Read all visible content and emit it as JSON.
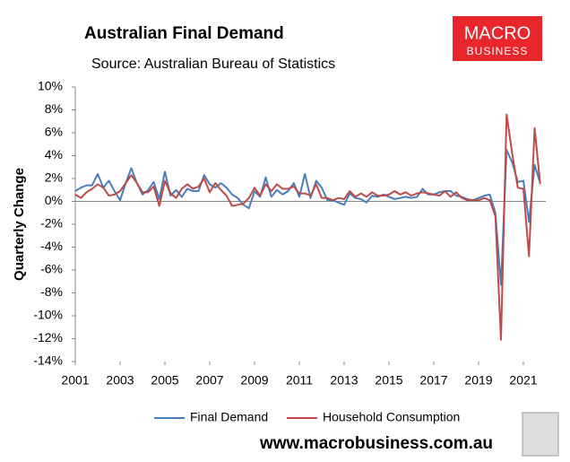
{
  "chart_data": {
    "type": "line",
    "title": "Australian Final Demand",
    "subtitle": "Source: Australian Bureau of Statistics",
    "y_label": "Quarterly Change",
    "logo": {
      "line1": "MACRO",
      "line2": "BUSINESS"
    },
    "url": "www.macrobusiness.com.au",
    "x": [
      2001,
      2001.25,
      2001.5,
      2001.75,
      2002,
      2002.25,
      2002.5,
      2002.75,
      2003,
      2003.25,
      2003.5,
      2003.75,
      2004,
      2004.25,
      2004.5,
      2004.75,
      2005,
      2005.25,
      2005.5,
      2005.75,
      2006,
      2006.25,
      2006.5,
      2006.75,
      2007,
      2007.25,
      2007.5,
      2007.75,
      2008,
      2008.25,
      2008.5,
      2008.75,
      2009,
      2009.25,
      2009.5,
      2009.75,
      2010,
      2010.25,
      2010.5,
      2010.75,
      2011,
      2011.25,
      2011.5,
      2011.75,
      2012,
      2012.25,
      2012.5,
      2012.75,
      2013,
      2013.25,
      2013.5,
      2013.75,
      2014,
      2014.25,
      2014.5,
      2014.75,
      2015,
      2015.25,
      2015.5,
      2015.75,
      2016,
      2016.25,
      2016.5,
      2016.75,
      2017,
      2017.25,
      2017.5,
      2017.75,
      2018,
      2018.25,
      2018.5,
      2018.75,
      2019,
      2019.25,
      2019.5,
      2019.75,
      2020,
      2020.25,
      2020.5,
      2020.75,
      2021,
      2021.25,
      2021.5,
      2021.75
    ],
    "series": [
      {
        "name": "Final Demand",
        "color": "#4a7ebb",
        "values": [
          0.9,
          1.2,
          1.4,
          1.4,
          2.4,
          1.2,
          1.8,
          0.9,
          0.1,
          1.6,
          2.9,
          1.6,
          0.6,
          1.0,
          1.7,
          0.2,
          2.6,
          0.5,
          1.0,
          0.4,
          1.1,
          0.9,
          0.9,
          2.3,
          1.5,
          1.2,
          1.6,
          1.2,
          0.6,
          0.3,
          -0.3,
          -0.6,
          0.9,
          0.4,
          2.1,
          0.4,
          1.0,
          0.6,
          0.9,
          1.6,
          0.4,
          2.4,
          0.3,
          1.8,
          1.2,
          0.1,
          0.1,
          -0.1,
          -0.3,
          0.7,
          0.3,
          0.2,
          -0.1,
          0.5,
          0.4,
          0.6,
          0.4,
          0.2,
          0.3,
          0.4,
          0.3,
          0.4,
          1.1,
          0.6,
          0.6,
          0.8,
          0.9,
          0.9,
          0.5,
          0.4,
          0.2,
          0.1,
          0.3,
          0.5,
          0.6,
          -1.0,
          -7.3,
          4.5,
          3.4,
          1.7,
          1.8,
          -1.8,
          3.2,
          1.6
        ]
      },
      {
        "name": "Household Consumption",
        "color": "#be4b48",
        "values": [
          0.6,
          0.3,
          0.8,
          1.1,
          1.5,
          1.2,
          0.5,
          0.6,
          0.9,
          1.6,
          2.3,
          1.6,
          0.8,
          0.8,
          1.3,
          -0.4,
          1.8,
          0.7,
          0.3,
          1.1,
          1.5,
          1.1,
          1.3,
          2.0,
          0.8,
          1.6,
          1.0,
          0.5,
          -0.4,
          -0.3,
          -0.2,
          0.3,
          1.2,
          0.5,
          1.5,
          0.9,
          1.5,
          1.1,
          1.1,
          1.3,
          0.7,
          0.7,
          0.5,
          1.5,
          0.3,
          0.3,
          0.1,
          0.3,
          0.2,
          0.9,
          0.4,
          0.7,
          0.4,
          0.8,
          0.5,
          0.5,
          0.6,
          0.9,
          0.6,
          0.8,
          0.5,
          0.7,
          0.8,
          0.7,
          0.6,
          0.5,
          0.9,
          0.4,
          0.8,
          0.3,
          0.1,
          0.1,
          0.1,
          0.3,
          0.1,
          -1.3,
          -12.1,
          7.6,
          4.2,
          1.2,
          1.1,
          -4.8,
          6.4,
          1.5
        ]
      }
    ],
    "xlim": [
      2001,
      2022
    ],
    "xticks": [
      2001,
      2003,
      2005,
      2007,
      2009,
      2011,
      2013,
      2015,
      2017,
      2019,
      2021
    ],
    "ylim": [
      -14,
      10
    ],
    "yticks": [
      {
        "value": -14,
        "label": "-14%"
      },
      {
        "value": -12,
        "label": "-12%"
      },
      {
        "value": -10,
        "label": "-10%"
      },
      {
        "value": -8,
        "label": "-8%"
      },
      {
        "value": -6,
        "label": "-6%"
      },
      {
        "value": -4,
        "label": "-4%"
      },
      {
        "value": -2,
        "label": "-2%"
      },
      {
        "value": 0,
        "label": "0%"
      },
      {
        "value": 2,
        "label": "2%"
      },
      {
        "value": 4,
        "label": "4%"
      },
      {
        "value": 6,
        "label": "6%"
      },
      {
        "value": 8,
        "label": "8%"
      },
      {
        "value": 10,
        "label": "10%"
      }
    ],
    "grid": false,
    "legend": "bottom"
  }
}
